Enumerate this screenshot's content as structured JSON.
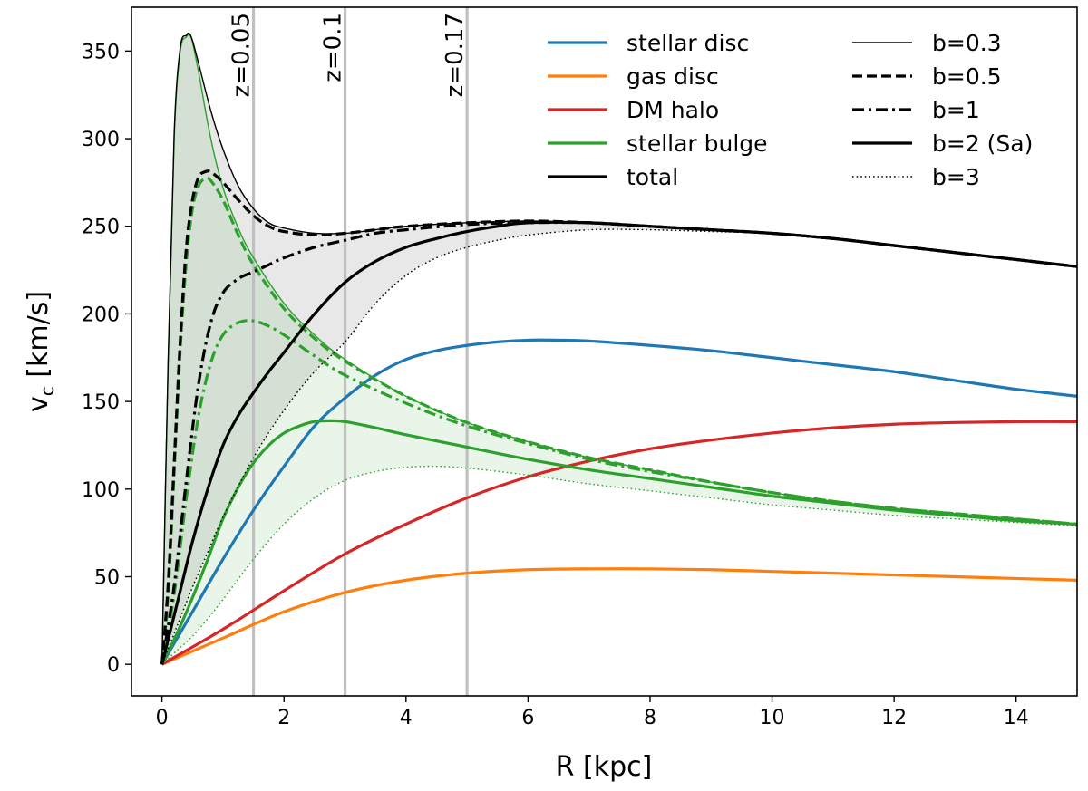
{
  "chart_data": {
    "type": "line",
    "xlabel": "R [kpc]",
    "ylabel_main": "v",
    "ylabel_sub": "c",
    "ylabel_unit": " [km/s]",
    "xlim": [
      -0.5,
      15
    ],
    "ylim": [
      -18,
      375
    ],
    "xticks": [
      0,
      2,
      4,
      6,
      8,
      10,
      12,
      14
    ],
    "yticks": [
      0,
      50,
      100,
      150,
      200,
      250,
      300,
      350
    ],
    "redshift_markers": [
      {
        "x": 1.5,
        "label": "z=0.05"
      },
      {
        "x": 3.0,
        "label": "z=0.1"
      },
      {
        "x": 5.0,
        "label": "z=0.17"
      }
    ],
    "colors": {
      "stellar_disc": "#1f77b4",
      "gas_disc": "#ff7f0e",
      "dm_halo": "#d62728",
      "stellar_bulge": "#2ca02c",
      "total": "#000000",
      "marker": "#c0c0c0"
    },
    "legend_components": [
      {
        "label": "stellar disc",
        "color": "#1f77b4"
      },
      {
        "label": "gas disc",
        "color": "#ff7f0e"
      },
      {
        "label": "DM halo",
        "color": "#d62728"
      },
      {
        "label": "stellar bulge",
        "color": "#2ca02c"
      },
      {
        "label": "total",
        "color": "#000000"
      }
    ],
    "legend_styles": [
      {
        "label": "b=0.3",
        "style": "thin"
      },
      {
        "label": "b=0.5",
        "style": "dashed"
      },
      {
        "label": "b=1",
        "style": "dashdot"
      },
      {
        "label": "b=2 (Sa)",
        "style": "solid"
      },
      {
        "label": "b=3",
        "style": "dotted"
      }
    ],
    "series": [
      {
        "name": "stellar disc",
        "component": "stellar_disc",
        "style": "solid",
        "x": [
          0,
          0.5,
          1,
          1.5,
          2,
          2.5,
          3,
          3.5,
          4,
          4.5,
          5,
          5.5,
          6,
          6.5,
          7,
          8,
          9,
          10,
          11,
          12,
          13,
          14,
          15
        ],
        "y": [
          0,
          30,
          60,
          88,
          113,
          136,
          152,
          165,
          174,
          179,
          182,
          184,
          185,
          185,
          184.5,
          182,
          179,
          175,
          171,
          167,
          162,
          157,
          153
        ]
      },
      {
        "name": "gas disc",
        "component": "gas_disc",
        "style": "solid",
        "x": [
          0,
          1,
          2,
          3,
          4,
          5,
          6,
          7,
          8,
          9,
          10,
          11,
          12,
          13,
          14,
          15
        ],
        "y": [
          0,
          15,
          30,
          41,
          48,
          52,
          54,
          54.5,
          54.5,
          54,
          53,
          52,
          51,
          50,
          49,
          48
        ]
      },
      {
        "name": "DM halo",
        "component": "dm_halo",
        "style": "solid",
        "x": [
          0,
          1,
          2,
          3,
          4,
          5,
          6,
          7,
          8,
          9,
          10,
          11,
          12,
          13,
          14,
          15
        ],
        "y": [
          0,
          20,
          42,
          63,
          80,
          95,
          107,
          116,
          123,
          128,
          132,
          135,
          137,
          138,
          138.5,
          138.5
        ]
      },
      {
        "name": "stellar bulge b=0.3",
        "component": "stellar_bulge",
        "style": "thin",
        "x": [
          0,
          0.1,
          0.2,
          0.3,
          0.4,
          0.45,
          0.5,
          0.6,
          0.8,
          1,
          1.25,
          1.5,
          2,
          2.5,
          3,
          4,
          5,
          6,
          7,
          8,
          9,
          10,
          11,
          12,
          13,
          14,
          15
        ],
        "y": [
          0,
          170,
          300,
          350,
          358,
          359,
          355,
          338,
          300,
          272,
          249,
          232,
          206,
          188,
          174,
          153,
          138,
          127,
          118,
          111,
          104,
          98,
          93,
          89,
          86,
          83,
          80
        ]
      },
      {
        "name": "stellar bulge b=0.5",
        "component": "stellar_bulge",
        "style": "dashed",
        "x": [
          0,
          0.1,
          0.2,
          0.3,
          0.4,
          0.5,
          0.6,
          0.7,
          0.8,
          1,
          1.25,
          1.5,
          2,
          2.5,
          3,
          4,
          5,
          6,
          7,
          8,
          9,
          10,
          11,
          12,
          13,
          14,
          15
        ],
        "y": [
          0,
          40,
          110,
          180,
          230,
          260,
          273,
          277,
          276,
          265,
          245,
          228,
          203,
          186,
          173,
          153,
          138,
          127,
          118,
          111,
          104,
          98,
          93,
          89,
          86,
          83,
          80
        ]
      },
      {
        "name": "stellar bulge b=1",
        "component": "stellar_bulge",
        "style": "dashdot",
        "x": [
          0,
          0.2,
          0.4,
          0.6,
          0.8,
          1,
          1.25,
          1.5,
          1.75,
          2,
          2.5,
          3,
          4,
          5,
          6,
          7,
          8,
          9,
          10,
          11,
          12,
          13,
          14,
          15
        ],
        "y": [
          0,
          40,
          95,
          142,
          172,
          188,
          195,
          196,
          193,
          188,
          176,
          165,
          149,
          136,
          126,
          117,
          110,
          104,
          98,
          93,
          89,
          86,
          83,
          80
        ]
      },
      {
        "name": "stellar bulge b=2 (Sa)",
        "component": "stellar_bulge",
        "style": "solid",
        "x": [
          0,
          0.25,
          0.5,
          0.75,
          1,
          1.25,
          1.5,
          1.75,
          2,
          2.25,
          2.5,
          2.75,
          3,
          3.5,
          4,
          5,
          6,
          7,
          8,
          9,
          10,
          11,
          12,
          13,
          14,
          15
        ],
        "y": [
          0,
          18,
          38,
          60,
          83,
          101,
          115,
          125,
          132,
          136,
          138.5,
          139,
          138.5,
          135,
          131,
          124,
          117,
          111,
          106,
          101,
          96,
          92,
          88,
          85,
          82,
          80
        ]
      },
      {
        "name": "stellar bulge b=3",
        "component": "stellar_bulge",
        "style": "dotted",
        "x": [
          0,
          0.25,
          0.5,
          0.75,
          1,
          1.5,
          2,
          2.5,
          3,
          3.5,
          4,
          4.5,
          5,
          6,
          7,
          8,
          9,
          10,
          11,
          12,
          13,
          14,
          15
        ],
        "y": [
          0,
          8,
          16,
          26,
          37,
          60,
          80,
          95,
          105,
          110,
          112.5,
          113,
          112,
          108,
          103,
          99,
          95,
          91,
          88,
          85,
          83,
          81,
          79
        ]
      },
      {
        "name": "total b=0.3",
        "component": "total",
        "style": "thin",
        "x": [
          0,
          0.1,
          0.2,
          0.3,
          0.4,
          0.45,
          0.5,
          0.6,
          0.8,
          1,
          1.25,
          1.5,
          1.75,
          2,
          2.5,
          3,
          3.5,
          4,
          5,
          6,
          7,
          8,
          9,
          10,
          11,
          12,
          13,
          14,
          15
        ],
        "y": [
          0,
          172,
          303,
          352,
          359,
          360,
          356,
          343,
          316,
          294,
          273,
          260,
          252,
          249,
          246,
          246,
          248,
          250,
          252,
          253,
          252,
          250,
          248,
          246,
          243,
          239,
          235,
          231,
          227
        ]
      },
      {
        "name": "total b=0.5",
        "component": "total",
        "style": "dashed",
        "x": [
          0,
          0.1,
          0.2,
          0.3,
          0.4,
          0.5,
          0.6,
          0.7,
          0.8,
          1,
          1.25,
          1.5,
          1.75,
          2,
          2.5,
          3,
          3.5,
          4,
          5,
          6,
          7,
          8,
          9,
          10,
          11,
          12,
          13,
          14,
          15
        ],
        "y": [
          0,
          45,
          115,
          185,
          238,
          265,
          278,
          281,
          281,
          275,
          265,
          256,
          250,
          247,
          245,
          246,
          248,
          250,
          252,
          253,
          252,
          250,
          248,
          246,
          243,
          239,
          235,
          231,
          227
        ]
      },
      {
        "name": "total b=1",
        "component": "total",
        "style": "dashdot",
        "x": [
          0,
          0.2,
          0.4,
          0.6,
          0.8,
          1,
          1.25,
          1.5,
          1.75,
          2,
          2.5,
          3,
          3.5,
          4,
          5,
          6,
          7,
          8,
          9,
          10,
          11,
          12,
          13,
          14,
          15
        ],
        "y": [
          0,
          45,
          105,
          160,
          195,
          212,
          220,
          224,
          228,
          232,
          238,
          242,
          246,
          248,
          251,
          252,
          252,
          250,
          248,
          246,
          243,
          239,
          235,
          231,
          227
        ]
      },
      {
        "name": "total b=2 (Sa)",
        "component": "total",
        "style": "solid",
        "x": [
          0,
          0.25,
          0.5,
          0.75,
          1,
          1.25,
          1.5,
          1.75,
          2,
          2.5,
          3,
          3.5,
          4,
          4.5,
          5,
          5.5,
          6,
          7,
          8,
          9,
          10,
          11,
          12,
          13,
          14,
          15
        ],
        "y": [
          0,
          35,
          70,
          100,
          125,
          142,
          155,
          167,
          178,
          200,
          218,
          230,
          238,
          243,
          247,
          250,
          252,
          252,
          250,
          248,
          246,
          243,
          239,
          235,
          231,
          227
        ]
      },
      {
        "name": "total b=3",
        "component": "total",
        "style": "dotted",
        "x": [
          0,
          0.25,
          0.5,
          0.75,
          1,
          1.5,
          2,
          2.5,
          3,
          3.5,
          4,
          4.5,
          5,
          5.5,
          6,
          7,
          8,
          9,
          10,
          11,
          12,
          13,
          14,
          15
        ],
        "y": [
          0,
          22,
          44,
          64,
          84,
          118,
          145,
          167,
          184,
          206,
          222,
          232,
          238,
          242,
          245,
          248,
          248,
          247,
          246,
          243,
          239,
          235,
          231,
          227
        ]
      }
    ],
    "bands": [
      {
        "component": "total",
        "upper": "total b=0.3",
        "lower": "total b=3",
        "fill": "#d9d9d9",
        "opacity": 0.6
      },
      {
        "component": "stellar_bulge",
        "upper": "stellar bulge b=0.3",
        "lower": "stellar bulge b=3",
        "fill": "#2ca02c",
        "opacity": 0.1
      }
    ]
  }
}
